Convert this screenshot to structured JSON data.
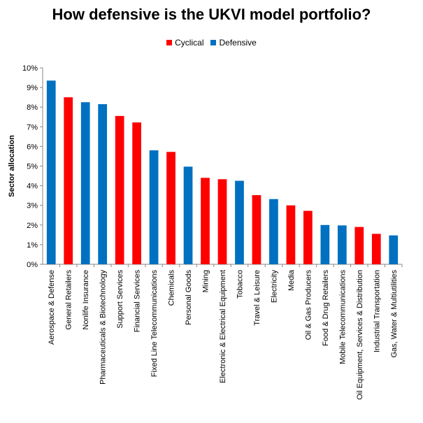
{
  "chart_data": {
    "type": "bar",
    "title": "How defensive is the UKVI model portfolio?",
    "xlabel": "",
    "ylabel": "Sector allocation",
    "ylim": [
      0,
      10
    ],
    "y_ticks": [
      "0%",
      "1%",
      "2%",
      "3%",
      "4%",
      "5%",
      "6%",
      "7%",
      "8%",
      "9%",
      "10%"
    ],
    "grid": false,
    "legend": {
      "placement": "top-center",
      "entries": [
        {
          "name": "Cyclical",
          "color": "#FF0000"
        },
        {
          "name": "Defensive",
          "color": "#0070C0"
        }
      ]
    },
    "categories": [
      "Aerospace & Defense",
      "General Retailers",
      "Nonlife Insurance",
      "Pharmaceuticals & Biotechnology",
      "Support Services",
      "Financial Services",
      "Fixed Line Telecommunications",
      "Chemicals",
      "Personal Goods",
      "Mining",
      "Electronic & Electrical Equipment",
      "Tobacco",
      "Travel & Leisure",
      "Electricity",
      "Media",
      "Oil & Gas Producers",
      "Food & Drug Retailers",
      "Mobile Telecommunications",
      "Oil Equipment, Services & Distribution",
      "Industrial Transportation",
      "Gas, Water & Multiutilities"
    ],
    "values": [
      9.35,
      8.5,
      8.25,
      8.15,
      7.55,
      7.22,
      5.8,
      5.72,
      4.97,
      4.4,
      4.33,
      4.25,
      3.52,
      3.32,
      3.0,
      2.72,
      2.0,
      1.98,
      1.9,
      1.55,
      1.47
    ],
    "series_type": [
      "Defensive",
      "Cyclical",
      "Defensive",
      "Defensive",
      "Cyclical",
      "Cyclical",
      "Defensive",
      "Cyclical",
      "Defensive",
      "Cyclical",
      "Cyclical",
      "Defensive",
      "Cyclical",
      "Defensive",
      "Cyclical",
      "Cyclical",
      "Defensive",
      "Defensive",
      "Cyclical",
      "Cyclical",
      "Defensive"
    ]
  }
}
